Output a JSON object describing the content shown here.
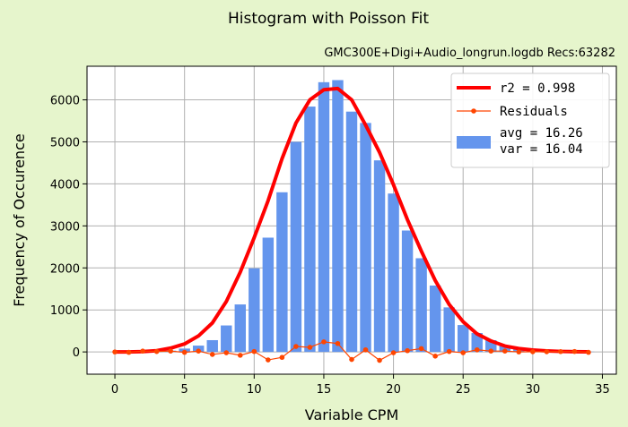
{
  "chart_data": {
    "type": "bar",
    "title": "Histogram with Poisson Fit",
    "subtitle": "GMC300E+Digi+Audio_longrun.logdb  Recs:63282",
    "xlabel": "Variable CPM",
    "ylabel": "Frequency of Occurence",
    "xlim": [
      -2,
      36
    ],
    "ylim": [
      -530,
      6800
    ],
    "xticks": [
      0,
      5,
      10,
      15,
      20,
      25,
      30,
      35
    ],
    "yticks": [
      0,
      1000,
      2000,
      3000,
      4000,
      5000,
      6000
    ],
    "grid": true,
    "legend_position": "top-right",
    "colors": {
      "histogram": "#6495ED",
      "fit": "#ff0000",
      "residuals": "#ff4500",
      "background": "#e6f5cc"
    },
    "x": [
      0,
      1,
      2,
      3,
      4,
      5,
      6,
      7,
      8,
      9,
      10,
      11,
      12,
      13,
      14,
      15,
      16,
      17,
      18,
      19,
      20,
      21,
      22,
      23,
      24,
      25,
      26,
      27,
      28,
      29,
      30,
      31,
      32,
      33,
      34
    ],
    "series": [
      {
        "name": "avg = 16.26\nvar = 16.04",
        "legend_lines": [
          "avg = 16.26",
          "var = 16.04"
        ],
        "kind": "bar",
        "values": [
          0,
          0,
          2,
          8,
          30,
          80,
          150,
          280,
          630,
          1130,
          1990,
          2720,
          3800,
          5000,
          5840,
          6420,
          6470,
          5720,
          5450,
          4560,
          3770,
          2890,
          2230,
          1580,
          1060,
          640,
          450,
          280,
          160,
          80,
          50,
          30,
          20,
          15,
          5
        ]
      },
      {
        "name": "r2  = 0.998",
        "kind": "line",
        "values": [
          0,
          1,
          7,
          30,
          90,
          190,
          380,
          690,
          1200,
          1900,
          2720,
          3600,
          4600,
          5450,
          6000,
          6240,
          6270,
          6000,
          5400,
          4750,
          3980,
          3150,
          2400,
          1700,
          1130,
          720,
          430,
          260,
          140,
          80,
          45,
          25,
          12,
          5,
          3
        ]
      },
      {
        "name": "Residuals",
        "kind": "line-markers",
        "values": [
          0,
          -10,
          20,
          10,
          20,
          -10,
          20,
          -60,
          -20,
          -80,
          10,
          -190,
          -130,
          130,
          110,
          240,
          200,
          -180,
          50,
          -200,
          -20,
          30,
          80,
          -100,
          10,
          -20,
          50,
          20,
          20,
          0,
          5,
          5,
          8,
          10,
          -10
        ]
      }
    ]
  }
}
